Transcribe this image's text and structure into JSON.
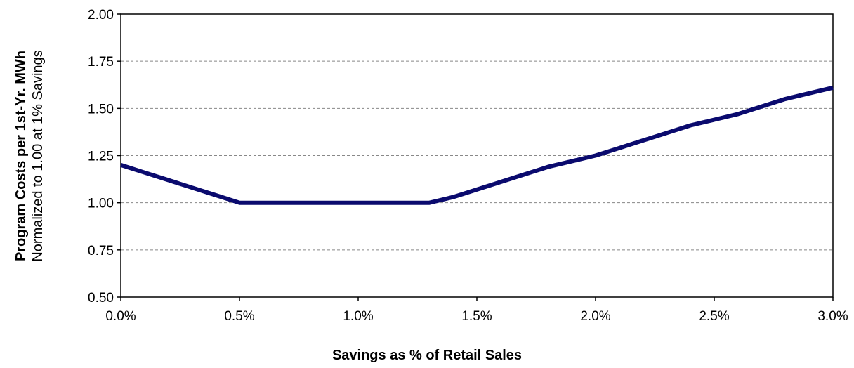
{
  "chart_data": {
    "type": "line",
    "title": "",
    "xlabel": "Savings as % of Retail Sales",
    "ylabel": "Program Costs per 1st-Yr. MWh",
    "ylabel_sub": "Normalized to 1.00 at 1% Savings",
    "xlim": [
      0.0,
      3.0
    ],
    "ylim": [
      0.5,
      2.0
    ],
    "x_ticks": [
      0.0,
      0.5,
      1.0,
      1.5,
      2.0,
      2.5,
      3.0
    ],
    "x_tick_labels": [
      "0.0%",
      "0.5%",
      "1.0%",
      "1.5%",
      "2.0%",
      "2.5%",
      "3.0%"
    ],
    "y_ticks": [
      0.5,
      0.75,
      1.0,
      1.25,
      1.5,
      1.75,
      2.0
    ],
    "y_tick_labels": [
      "0.50",
      "0.75",
      "1.00",
      "1.25",
      "1.50",
      "1.75",
      "2.00"
    ],
    "grid": "horizontal dashed",
    "line_color": "#0a0a6e",
    "series": [
      {
        "x": [
          0.0,
          0.1,
          0.2,
          0.3,
          0.4,
          0.5,
          0.6,
          0.7,
          0.8,
          0.9,
          1.0,
          1.1,
          1.2,
          1.3,
          1.4,
          1.5,
          1.6,
          1.7,
          1.8,
          1.9,
          2.0,
          2.1,
          2.2,
          2.3,
          2.4,
          2.5,
          2.6,
          2.7,
          2.8,
          2.9,
          3.0
        ],
        "values": [
          1.2,
          1.16,
          1.12,
          1.08,
          1.04,
          1.0,
          1.0,
          1.0,
          1.0,
          1.0,
          1.0,
          1.0,
          1.0,
          1.0,
          1.03,
          1.07,
          1.11,
          1.15,
          1.19,
          1.22,
          1.25,
          1.29,
          1.33,
          1.37,
          1.41,
          1.44,
          1.47,
          1.51,
          1.55,
          1.58,
          1.61
        ]
      }
    ]
  }
}
